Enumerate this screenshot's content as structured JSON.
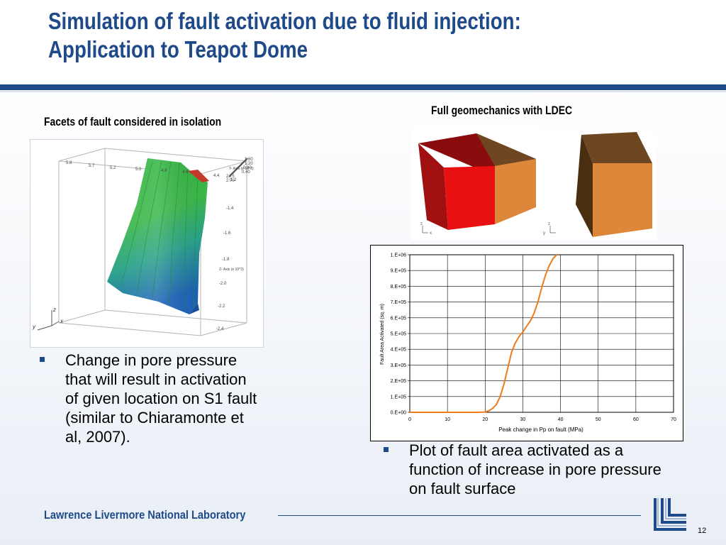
{
  "slide": {
    "title_line1": "Simulation of fault activation due to fluid injection:",
    "title_line2": "Application to Teapot Dome",
    "caption_left": "Facets of fault considered in isolation",
    "caption_right": "Full geomechanics with LDEC",
    "bullet_left": "Change in pore pressure that will result in activation of given location on S1 fault (similar to Chiaramonte et al, 2007).",
    "bullet_right": "Plot of fault area activated as a function of increase in pore pressure on fault surface",
    "footer": "Lawrence Livermore National Laboratory",
    "page_number": "12",
    "colors": {
      "title": "#1f4a8a",
      "rule": "#1f4a8a",
      "curve": "#f07a1a"
    }
  },
  "fault_plot": {
    "axis_x": "x",
    "axis_y": "y",
    "axis_z": "z",
    "label_z_axis": "Z- Axis (e 10^3)",
    "label_y_axis": "Y- Axis (e 10^3)",
    "z_ticks": [
      "-1.2",
      "-1.4",
      "-1.6",
      "-1.8",
      "-2.0",
      "-2.2",
      "-2.4"
    ],
    "top_ticks": [
      "5.8",
      "5.7",
      "5.2",
      "5.0",
      "4.8",
      "4.6",
      "4.4"
    ],
    "side_ticks": [
      "1.60",
      "1.20",
      "0.80",
      "0.40",
      "2.75",
      "2.70"
    ]
  },
  "blocks": {
    "axis_x": "x",
    "axis_y": "y",
    "axis_z": "z"
  },
  "chart_data": {
    "type": "line",
    "xlabel": "Peak change in Pp on fault (MPa)",
    "ylabel": "Fault Area Activated (sq. m)",
    "xlim": [
      0,
      70
    ],
    "ylim": [
      0,
      1000000
    ],
    "x_ticks": [
      "0",
      "10",
      "20",
      "30",
      "40",
      "50",
      "60",
      "70"
    ],
    "y_ticks": [
      "0.E+00",
      "1.E+05",
      "2.E+05",
      "3.E+05",
      "4.E+05",
      "5.E+05",
      "6.E+05",
      "7.E+05",
      "8.E+05",
      "9.E+05",
      "1.E+06"
    ],
    "grid": true,
    "series": [
      {
        "x": [
          0,
          10,
          14,
          18,
          20,
          21,
          22,
          23,
          24,
          25,
          26,
          27,
          28,
          29,
          30,
          31,
          32,
          33,
          34,
          35,
          36,
          37,
          38,
          39
        ],
        "y": [
          0,
          0,
          0,
          0,
          2000,
          10000,
          25000,
          50000,
          100000,
          180000,
          280000,
          380000,
          440000,
          480000,
          510000,
          545000,
          580000,
          630000,
          700000,
          790000,
          870000,
          930000,
          975000,
          1000000
        ],
        "color": "#f07a1a"
      }
    ]
  }
}
